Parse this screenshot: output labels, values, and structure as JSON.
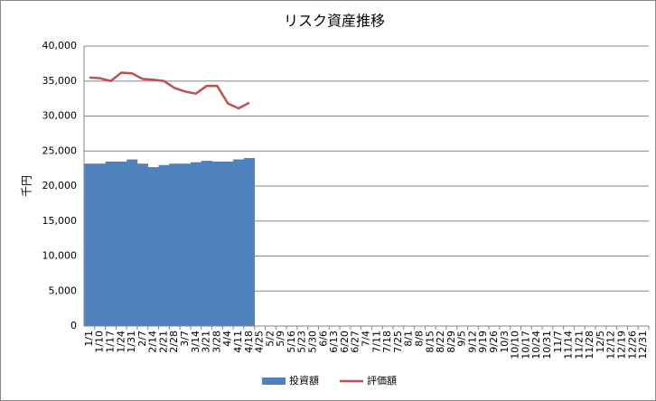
{
  "chart_data": {
    "type": "bar_line",
    "title": "リスク資産推移",
    "y_label": "千円",
    "categories": [
      "1/1",
      "1/10",
      "1/17",
      "1/24",
      "1/31",
      "2/7",
      "2/14",
      "2/21",
      "2/28",
      "3/7",
      "3/14",
      "3/21",
      "3/28",
      "4/4",
      "4/11",
      "4/18",
      "4/25",
      "5/2",
      "5/9",
      "5/16",
      "5/23",
      "5/30",
      "6/6",
      "6/13",
      "6/20",
      "6/27",
      "7/4",
      "7/11",
      "7/18",
      "7/25",
      "8/1",
      "8/8",
      "8/15",
      "8/22",
      "8/29",
      "9/5",
      "9/12",
      "9/19",
      "9/26",
      "10/3",
      "10/10",
      "10/17",
      "10/24",
      "10/31",
      "11/7",
      "11/14",
      "11/21",
      "11/28",
      "12/5",
      "12/12",
      "12/19",
      "12/26",
      "12/31"
    ],
    "series": [
      {
        "name": "投資額",
        "type": "bar",
        "color": "#4f81bd",
        "values": [
          23200,
          23200,
          23500,
          23500,
          23800,
          23200,
          22700,
          23000,
          23200,
          23200,
          23400,
          23600,
          23500,
          23500,
          23800,
          24000,
          null,
          null,
          null,
          null,
          null,
          null,
          null,
          null,
          null,
          null,
          null,
          null,
          null,
          null,
          null,
          null,
          null,
          null,
          null,
          null,
          null,
          null,
          null,
          null,
          null,
          null,
          null,
          null,
          null,
          null,
          null,
          null,
          null,
          null,
          null,
          null,
          null
        ]
      },
      {
        "name": "評価額",
        "type": "line",
        "color": "#c0504d",
        "values": [
          35500,
          35400,
          35000,
          36200,
          36100,
          35300,
          35200,
          35000,
          34000,
          33500,
          33200,
          34300,
          34300,
          31800,
          31100,
          31900,
          null,
          null,
          null,
          null,
          null,
          null,
          null,
          null,
          null,
          null,
          null,
          null,
          null,
          null,
          null,
          null,
          null,
          null,
          null,
          null,
          null,
          null,
          null,
          null,
          null,
          null,
          null,
          null,
          null,
          null,
          null,
          null,
          null,
          null,
          null,
          null,
          null
        ]
      }
    ],
    "ylim": [
      0,
      40000
    ],
    "yticks": [
      0,
      {
        "value": 5000,
        "label": "5,000"
      },
      {
        "value": 10000,
        "label": "10,000"
      },
      {
        "value": 15000,
        "label": "15,000"
      },
      {
        "value": 20000,
        "label": "20,000"
      },
      {
        "value": 25000,
        "label": "25,000"
      },
      {
        "value": 30000,
        "label": "30,000"
      },
      {
        "value": 35000,
        "label": "35,000"
      },
      {
        "value": 40000,
        "label": "40,000"
      }
    ],
    "grid": true,
    "legend": "bottom"
  }
}
